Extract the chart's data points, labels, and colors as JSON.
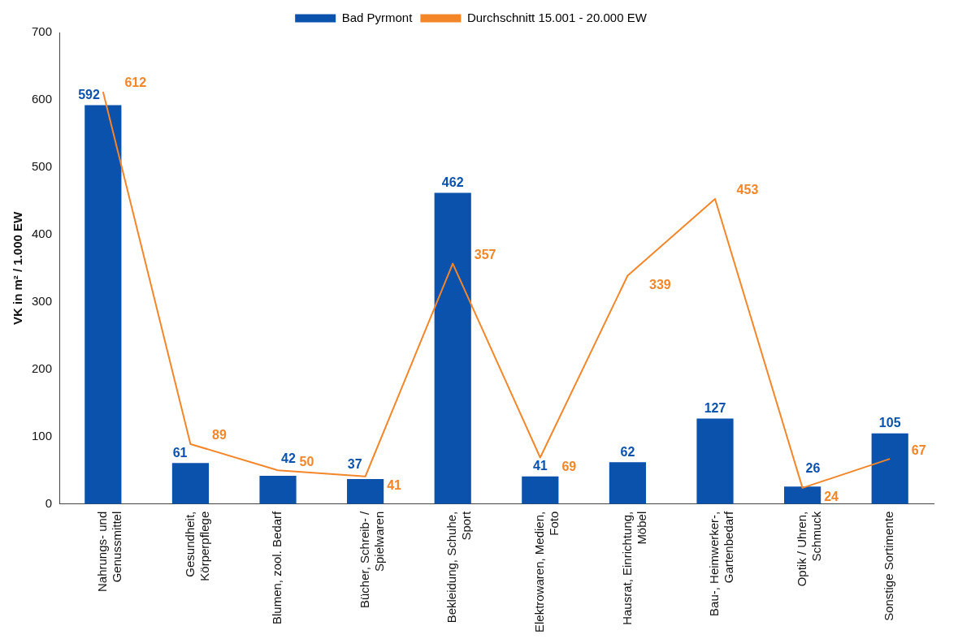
{
  "chart_data": {
    "type": "bar",
    "ylabel": "VK in m² / 1.000 EW",
    "categories": [
      "Nahrungs- und Genussmittel",
      "Gesundheit, Körperpflege",
      "Blumen, zool. Bedarf",
      "Bücher, Schreib- / Spielwaren",
      "Bekleidung, Schuhe, Sport",
      "Elektrowaren, Medien, Foto",
      "Hausrat, Einrichtung, Möbel",
      "Bau-, Heimwerker-, Gartenbedarf",
      "Optik / Uhren, Schmuck",
      "Sonstige Sortimente"
    ],
    "series": [
      {
        "name": "Bad Pyrmont",
        "color": "#0b52ad",
        "values": [
          592,
          61,
          42,
          37,
          462,
          41,
          62,
          127,
          26,
          105
        ]
      },
      {
        "name": "Durchschnitt 15.001 - 20.000 EW",
        "type": "line",
        "color": "#f4862a",
        "values": [
          612,
          89,
          50,
          41,
          357,
          69,
          339,
          453,
          24,
          67
        ]
      }
    ],
    "ylim": [
      0,
      700
    ],
    "yticks": [
      0,
      100,
      200,
      300,
      400,
      500,
      600,
      700
    ],
    "grid": false,
    "legend": "top",
    "marker": "none",
    "line_style": "solid",
    "data_labels": true
  }
}
